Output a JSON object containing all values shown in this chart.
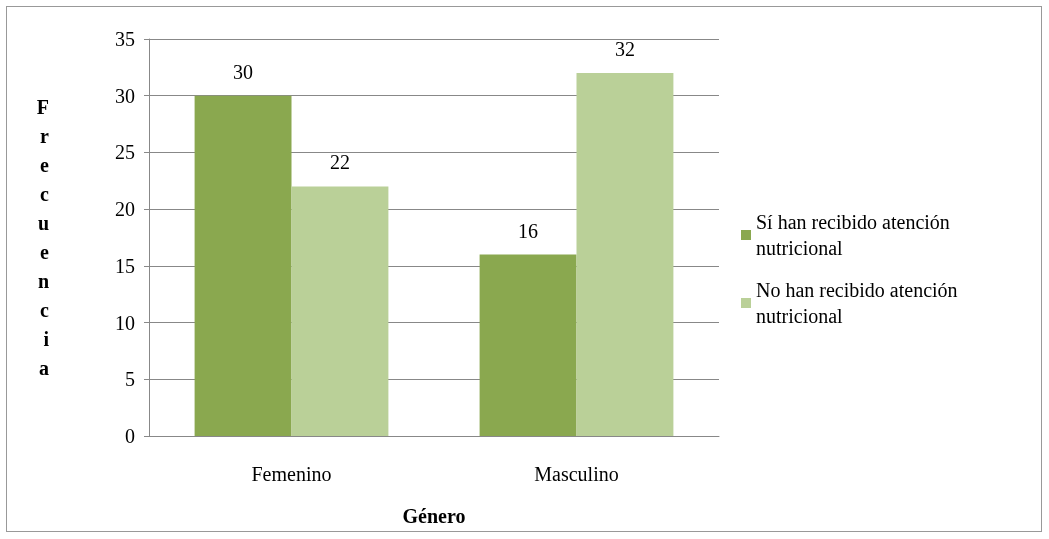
{
  "chart_data": {
    "type": "bar",
    "xlabel": "Género",
    "ylabel": "Frecuencia",
    "categories": [
      "Femenino",
      "Masculino"
    ],
    "series": [
      {
        "name": "Sí han recibido atención nutricional",
        "color": "#8aa84f",
        "values": [
          30,
          16
        ]
      },
      {
        "name": "No han recibido atención nutricional",
        "color": "#bad098",
        "values": [
          22,
          32
        ]
      }
    ],
    "ylim": [
      0,
      35
    ],
    "yticks": [
      0,
      5,
      10,
      15,
      20,
      25,
      30,
      35
    ],
    "grid": "y",
    "legend": "right",
    "data_labels": true
  }
}
